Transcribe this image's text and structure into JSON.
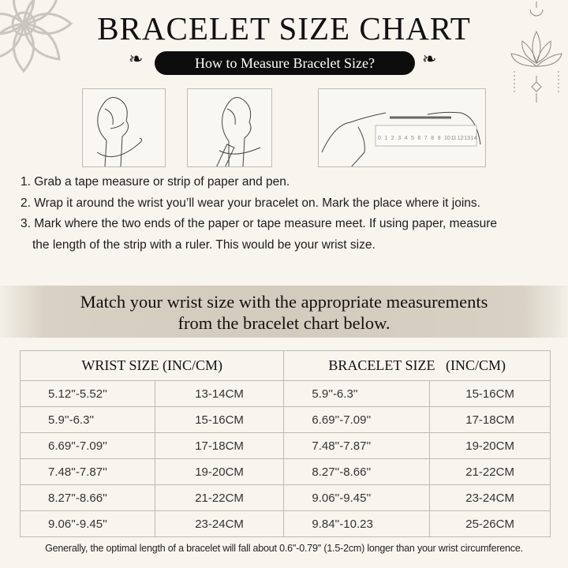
{
  "title": "BRACELET SIZE CHART",
  "subtitle": "How to Measure Bracelet Size?",
  "illustrations": {
    "ruler_numbers": [
      "0",
      "1",
      "2",
      "3",
      "4",
      "5",
      "6",
      "7",
      "8",
      "9",
      "10",
      "11",
      "12",
      "13",
      "14"
    ]
  },
  "steps": [
    "1. Grab a tape measure or strip of paper and pen.",
    "2. Wrap it around the wrist you’ll wear your bracelet on. Mark the place where it joins.",
    "3. Mark where the two ends of the paper or tape measure meet. If using paper, measure",
    "the length of the strip with a ruler. This would be your wrist size."
  ],
  "banner": {
    "line1": "Match your wrist size with the appropriate measurements",
    "line2": "from the bracelet chart below."
  },
  "table": {
    "headers": [
      "WRIST SIZE (INC/CM)",
      "BRACELET SIZE   (INC/CM)"
    ],
    "rows": [
      [
        "5.12''-5.52''",
        "13-14CM",
        "5.9''-6.3''",
        "15-16CM"
      ],
      [
        "5.9''-6.3''",
        "15-16CM",
        "6.69''-7.09''",
        "17-18CM"
      ],
      [
        "6.69''-7.09''",
        "17-18CM",
        "7.48''-7.87''",
        "19-20CM"
      ],
      [
        "7.48''-7.87''",
        "19-20CM",
        "8.27''-8.66''",
        "21-22CM"
      ],
      [
        "8.27''-8.66''",
        "21-22CM",
        "9.06''-9.45''",
        "23-24CM"
      ],
      [
        "9.06''-9.45''",
        "23-24CM",
        "9.84''-10.23",
        "25-26CM"
      ]
    ]
  },
  "footnote": "Generally, the optimal length of a bracelet will fall about 0.6''-0.79'' (1.5-2cm) longer than your wrist circumference."
}
